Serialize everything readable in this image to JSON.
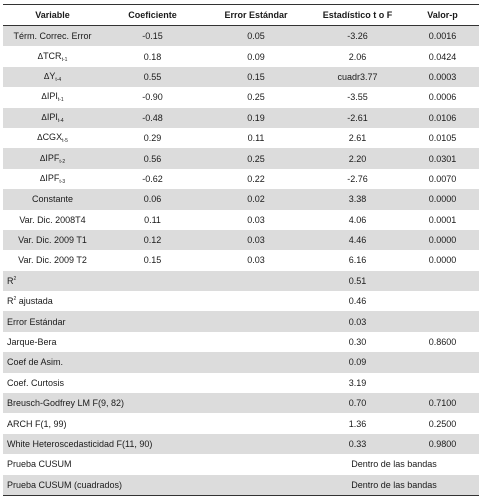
{
  "headers": [
    "Variable",
    "Coeficiente",
    "Error Estándar",
    "Estadístico t o F",
    "Valor-p"
  ],
  "coef_rows": [
    {
      "var": "Térm. Correc. Error",
      "coef": "-0.15",
      "se": "0.05",
      "stat": "-3.26",
      "p": "0.0016"
    },
    {
      "sym": "Δ",
      "base": "TCR",
      "sub": "t-1",
      "coef": "0.18",
      "se": "0.09",
      "stat": "2.06",
      "p": "0.0424"
    },
    {
      "sym": "Δ",
      "base": "Y",
      "sub": "t-4",
      "coef": "0.55",
      "se": "0.15",
      "stat": "cuadr3.77",
      "p": "0.0003"
    },
    {
      "sym": "Δ",
      "base": "IPI",
      "sub": "t-1",
      "coef": "-0.90",
      "se": "0.25",
      "stat": "-3.55",
      "p": "0.0006"
    },
    {
      "sym": "Δ",
      "base": "IPI",
      "sub": "t-4",
      "coef": "-0.48",
      "se": "0.19",
      "stat": "-2.61",
      "p": "0.0106"
    },
    {
      "sym": "Δ",
      "base": "CGX",
      "sub": "t-5",
      "coef": "0.29",
      "se": "0.11",
      "stat": "2.61",
      "p": "0.0105"
    },
    {
      "sym": "Δ",
      "base": "IPF",
      "sub": "t-2",
      "coef": "0.56",
      "se": "0.25",
      "stat": "2.20",
      "p": "0.0301"
    },
    {
      "sym": "Δ",
      "base": "IPF",
      "sub": "t-3",
      "coef": "-0.62",
      "se": "0.22",
      "stat": "-2.76",
      "p": "0.0070"
    },
    {
      "var": "Constante",
      "coef": "0.06",
      "se": "0.02",
      "stat": "3.38",
      "p": "0.0000"
    },
    {
      "var": "Var. Dic. 2008T4",
      "coef": "0.11",
      "se": "0.03",
      "stat": "4.06",
      "p": "0.0001"
    },
    {
      "var": "Var. Dic. 2009 T1",
      "coef": "0.12",
      "se": "0.03",
      "stat": "4.46",
      "p": "0.0000"
    },
    {
      "var": "Var. Dic. 2009 T2",
      "coef": "0.15",
      "se": "0.03",
      "stat": "6.16",
      "p": "0.0000"
    }
  ],
  "stat_rows": [
    {
      "label": "R",
      "sup": "2",
      "stat": "0.51",
      "p": ""
    },
    {
      "label": "R",
      "sup": "2",
      "label_rest": " ajustada",
      "stat": "0.46",
      "p": ""
    },
    {
      "label": "Error Estándar",
      "stat": "0.03",
      "p": ""
    },
    {
      "label": "Jarque-Bera",
      "stat": "0.30",
      "p": "0.8600"
    },
    {
      "label": "Coef de Asim.",
      "stat": "0.09",
      "p": ""
    },
    {
      "label": "Coef. Curtosis",
      "stat": "3.19",
      "p": ""
    },
    {
      "label": "Breusch-Godfrey LM F(9, 82)",
      "stat": "0.70",
      "p": "0.7100"
    },
    {
      "label": "ARCH F(1, 99)",
      "stat": "1.36",
      "p": "0.2500"
    },
    {
      "label": "White Heteroscedasticidad F(11, 90)",
      "stat": "0.33",
      "p": "0.9800"
    }
  ],
  "cusum_rows": [
    {
      "label": "Prueba CUSUM",
      "result": "Dentro de las bandas"
    },
    {
      "label": "Prueba CUSUM (cuadrados)",
      "result": "Dentro de las bandas"
    }
  ]
}
